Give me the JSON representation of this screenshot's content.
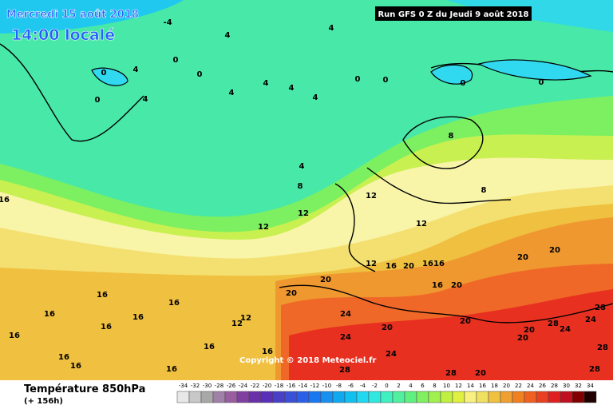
{
  "header": {
    "date": "Mercredi 15 août 2018",
    "time": "14:00 localé",
    "run": "Run GFS 0 Z du Jeudi 9 août 2018"
  },
  "footer": {
    "title": "Température 850hPa",
    "lead": "(+ 156h)",
    "copyright": "Copyright © 2018 Meteociel.fr"
  },
  "legend": {
    "ticks": [
      -34,
      -32,
      -30,
      -28,
      -26,
      -24,
      -22,
      -20,
      -18,
      -16,
      -14,
      -12,
      -10,
      -8,
      -6,
      -4,
      -2,
      0,
      2,
      4,
      6,
      8,
      10,
      12,
      14,
      16,
      18,
      20,
      22,
      24,
      26,
      28,
      30,
      32,
      34
    ],
    "colors": [
      "#e8e8e8",
      "#c8c8c8",
      "#a8a8a8",
      "#a080a8",
      "#9a5ea0",
      "#8040a0",
      "#6a30a8",
      "#5a30b8",
      "#4a40c8",
      "#3a50d8",
      "#2a60e8",
      "#1a78f0",
      "#1890f0",
      "#10a8f0",
      "#10c0f0",
      "#20d8f0",
      "#30e8e0",
      "#40f0c0",
      "#50f0a0",
      "#60f080",
      "#80f060",
      "#a0f050",
      "#c0f040",
      "#e0f040",
      "#f8f080",
      "#f0e060",
      "#f0c040",
      "#f0a030",
      "#f08020",
      "#f06020",
      "#e84020",
      "#e02020",
      "#c01020",
      "#800000",
      "#200000"
    ]
  },
  "contour_labels": [
    -4,
    4,
    4,
    0,
    4,
    0,
    4,
    0,
    0,
    4,
    4,
    4,
    4,
    0,
    0,
    0,
    0,
    8,
    4,
    8,
    12,
    12,
    12,
    12,
    8,
    12,
    16,
    20,
    16,
    16,
    20,
    20,
    16,
    20,
    16,
    16,
    16,
    16,
    16,
    12,
    12,
    16,
    24,
    24,
    20,
    24,
    20,
    20,
    20,
    20,
    20,
    28,
    24,
    28,
    24,
    28,
    28,
    28,
    20,
    28,
    16,
    16,
    16,
    16,
    16,
    16
  ]
}
